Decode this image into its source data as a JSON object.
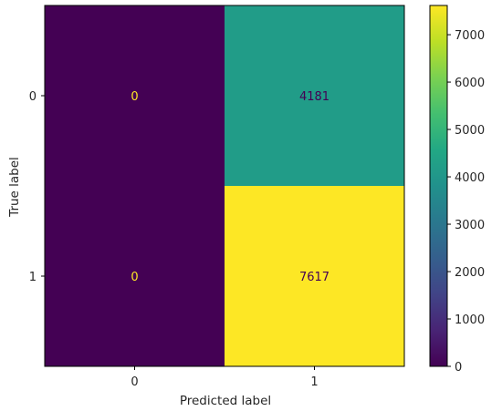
{
  "chart_data": {
    "type": "heatmap",
    "xlabel": "Predicted label",
    "ylabel": "True label",
    "x_categories": [
      "0",
      "1"
    ],
    "y_categories": [
      "0",
      "1"
    ],
    "values": [
      [
        0,
        4181
      ],
      [
        0,
        7617
      ]
    ],
    "colormap": "viridis",
    "colorbar": {
      "min": 0,
      "max": 7617,
      "ticks": [
        0,
        1000,
        2000,
        3000,
        4000,
        5000,
        6000,
        7000
      ]
    },
    "annotation_colors": {
      "on_dark": "#fde725",
      "on_light": "#440154"
    }
  }
}
